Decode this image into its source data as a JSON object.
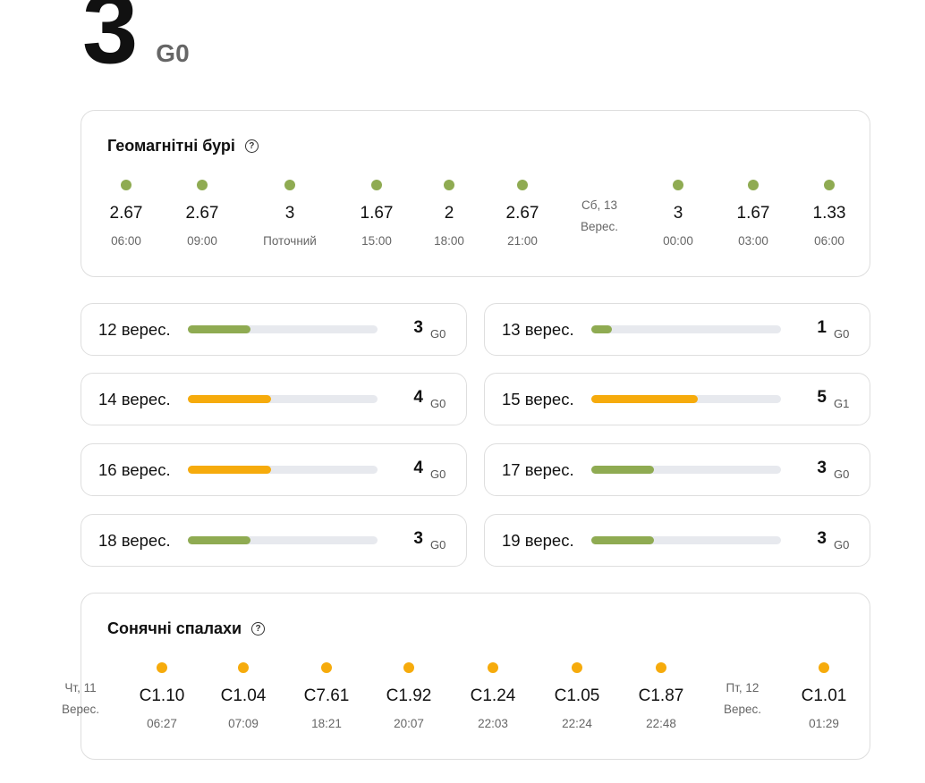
{
  "current": {
    "value": "3",
    "scale": "G0"
  },
  "geomagnetic": {
    "title": "Геомагнітні бурі",
    "items": [
      {
        "value": "2.67",
        "label": "06:00",
        "color": "#8fab52"
      },
      {
        "value": "2.67",
        "label": "09:00",
        "color": "#8fab52"
      },
      {
        "value": "3",
        "label": "Поточний",
        "color": "#8fab52"
      },
      {
        "value": "1.67",
        "label": "15:00",
        "color": "#8fab52"
      },
      {
        "value": "2",
        "label": "18:00",
        "color": "#8fab52"
      },
      {
        "value": "2.67",
        "label": "21:00",
        "color": "#8fab52"
      },
      {
        "value": "3",
        "label": "00:00",
        "color": "#8fab52"
      },
      {
        "value": "1.67",
        "label": "03:00",
        "color": "#8fab52"
      },
      {
        "value": "1.33",
        "label": "06:00",
        "color": "#8fab52"
      }
    ],
    "divider": {
      "line1": "Сб, 13",
      "line2": "Верес."
    }
  },
  "forecast": [
    {
      "date": "12 верес.",
      "value": "3",
      "scale": "G0",
      "level": 0.33,
      "color": "#8fab52"
    },
    {
      "date": "13 верес.",
      "value": "1",
      "scale": "G0",
      "level": 0.11,
      "color": "#8fab52"
    },
    {
      "date": "14 верес.",
      "value": "4",
      "scale": "G0",
      "level": 0.44,
      "color": "#f6ab0c"
    },
    {
      "date": "15 верес.",
      "value": "5",
      "scale": "G1",
      "level": 0.56,
      "color": "#f6ab0c"
    },
    {
      "date": "16 верес.",
      "value": "4",
      "scale": "G0",
      "level": 0.44,
      "color": "#f6ab0c"
    },
    {
      "date": "17 верес.",
      "value": "3",
      "scale": "G0",
      "level": 0.33,
      "color": "#8fab52"
    },
    {
      "date": "18 верес.",
      "value": "3",
      "scale": "G0",
      "level": 0.33,
      "color": "#8fab52"
    },
    {
      "date": "19 верес.",
      "value": "3",
      "scale": "G0",
      "level": 0.33,
      "color": "#8fab52"
    }
  ],
  "flares": {
    "title": "Сонячні спалахи",
    "left_divider": {
      "line1": "Чт, 11",
      "line2": "Верес."
    },
    "items": [
      {
        "value": "C1.10",
        "label": "06:27",
        "color": "#f6ab0c"
      },
      {
        "value": "C1.04",
        "label": "07:09",
        "color": "#f6ab0c"
      },
      {
        "value": "C7.61",
        "label": "18:21",
        "color": "#f6ab0c"
      },
      {
        "value": "C1.92",
        "label": "20:07",
        "color": "#f6ab0c"
      },
      {
        "value": "C1.24",
        "label": "22:03",
        "color": "#f6ab0c"
      },
      {
        "value": "C1.05",
        "label": "22:24",
        "color": "#f6ab0c"
      },
      {
        "value": "C1.87",
        "label": "22:48",
        "color": "#f6ab0c"
      },
      {
        "value": "C1.01",
        "label": "01:29",
        "color": "#f6ab0c"
      }
    ],
    "divider": {
      "line1": "Пт, 12",
      "line2": "Верес."
    }
  },
  "icons": {
    "help": "help-circle-icon"
  }
}
